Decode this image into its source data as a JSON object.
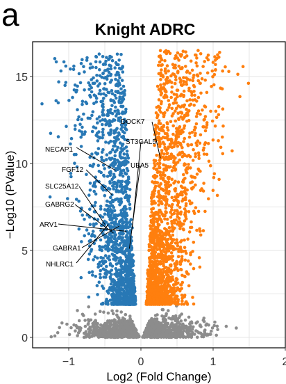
{
  "panel_label": "a",
  "chart_data": {
    "type": "scatter",
    "title": "Knight ADRC",
    "xlabel": "Log2 (Fold Change)",
    "ylabel": "−Log10 (PValue)",
    "xlim": [
      -1.5,
      2.0
    ],
    "ylim": [
      -0.6,
      17.0
    ],
    "xticks": [
      -1,
      0,
      1,
      2
    ],
    "yticks": [
      0,
      5,
      10,
      15
    ],
    "xtick_labels": [
      "−1",
      "0",
      "1",
      "2"
    ],
    "ytick_labels": [
      "0",
      "5",
      "10",
      "15"
    ],
    "grid": true,
    "significance_threshold_neglog10p": 1.9,
    "colors": {
      "down_regulated": "#2878b5",
      "up_regulated": "#ff7f0e",
      "not_significant": "#8c8c8c",
      "panel_border": "#000000",
      "grid": "#e6e6e6"
    },
    "groups": [
      {
        "group": "down_regulated",
        "x_range": [
          -1.4,
          -0.05
        ],
        "y_range": [
          1.9,
          16.3
        ],
        "color": "#2878b5"
      },
      {
        "group": "up_regulated",
        "x_range": [
          0.05,
          1.9
        ],
        "y_range": [
          1.9,
          16.5
        ],
        "color": "#ff7f0e"
      },
      {
        "group": "not_significant",
        "x_range": [
          -1.3,
          1.5
        ],
        "y_range": [
          0,
          1.9
        ],
        "color": "#8c8c8c"
      }
    ],
    "labeled_genes": [
      {
        "name": "DOCK7",
        "x": 0.27,
        "y": 10.3
      },
      {
        "name": "ST3GAL5",
        "x": -0.12,
        "y": 6.3
      },
      {
        "name": "UBA5",
        "x": -0.16,
        "y": 5.1
      },
      {
        "name": "NECAP1",
        "x": -0.35,
        "y": 9.6
      },
      {
        "name": "FGF12",
        "x": -0.4,
        "y": 8.2
      },
      {
        "name": "SLC25A12",
        "x": -0.5,
        "y": 6.5
      },
      {
        "name": "GABRG2",
        "x": -0.38,
        "y": 6.0
      },
      {
        "name": "ARV1",
        "x": -0.2,
        "y": 6.1
      },
      {
        "name": "GABRA1",
        "x": -0.3,
        "y": 6.4
      },
      {
        "name": "NHLRC1",
        "x": -0.45,
        "y": 6.5
      }
    ]
  }
}
